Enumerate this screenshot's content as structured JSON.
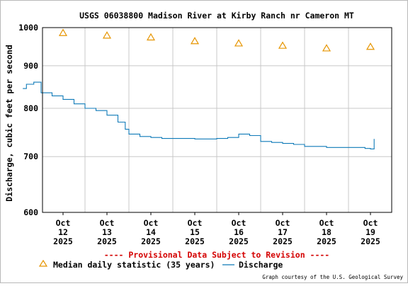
{
  "chart_data": {
    "type": "line",
    "title": "USGS 06038800 Madison River at Kirby Ranch nr Cameron MT",
    "ylabel": "Discharge, cubic feet per second",
    "xlabel": "",
    "y_scale": "log",
    "ylim": [
      600,
      1000
    ],
    "y_ticks": [
      600,
      700,
      800,
      900,
      1000
    ],
    "x_ticks": [
      {
        "month": "Oct",
        "day": "12",
        "year": "2025"
      },
      {
        "month": "Oct",
        "day": "13",
        "year": "2025"
      },
      {
        "month": "Oct",
        "day": "14",
        "year": "2025"
      },
      {
        "month": "Oct",
        "day": "15",
        "year": "2025"
      },
      {
        "month": "Oct",
        "day": "16",
        "year": "2025"
      },
      {
        "month": "Oct",
        "day": "17",
        "year": "2025"
      },
      {
        "month": "Oct",
        "day": "18",
        "year": "2025"
      },
      {
        "month": "Oct",
        "day": "19",
        "year": "2025"
      }
    ],
    "grid": true,
    "legend_position": "bottom",
    "series": [
      {
        "name": "Median daily statistic (35 years)",
        "type": "scatter",
        "marker": "triangle",
        "color": "#e69500",
        "x": [
          "2025-10-12",
          "2025-10-13",
          "2025-10-14",
          "2025-10-15",
          "2025-10-16",
          "2025-10-17",
          "2025-10-18",
          "2025-10-19"
        ],
        "values": [
          985,
          978,
          973,
          963,
          957,
          951,
          944,
          948
        ]
      },
      {
        "name": "Discharge",
        "type": "line",
        "color": "#0f7ab8",
        "x": [
          "2025-10-11 14:00",
          "2025-10-11 16:00",
          "2025-10-11 20:00",
          "2025-10-12 00:00",
          "2025-10-12 06:00",
          "2025-10-12 12:00",
          "2025-10-12 18:00",
          "2025-10-13 00:00",
          "2025-10-13 06:00",
          "2025-10-13 12:00",
          "2025-10-13 18:00",
          "2025-10-13 22:00",
          "2025-10-14 00:00",
          "2025-10-14 06:00",
          "2025-10-14 12:00",
          "2025-10-14 18:00",
          "2025-10-15 00:00",
          "2025-10-15 06:00",
          "2025-10-15 12:00",
          "2025-10-15 18:00",
          "2025-10-16 00:00",
          "2025-10-16 06:00",
          "2025-10-16 12:00",
          "2025-10-16 18:00",
          "2025-10-17 00:00",
          "2025-10-17 06:00",
          "2025-10-17 12:00",
          "2025-10-17 18:00",
          "2025-10-18 00:00",
          "2025-10-18 06:00",
          "2025-10-18 12:00",
          "2025-10-18 18:00",
          "2025-10-19 00:00",
          "2025-10-19 06:00",
          "2025-10-19 09:00",
          "2025-10-19 12:00",
          "2025-10-19 14:00"
        ],
        "values": [
          845,
          855,
          860,
          835,
          828,
          820,
          810,
          800,
          795,
          785,
          770,
          755,
          745,
          740,
          738,
          736,
          736,
          736,
          735,
          735,
          736,
          738,
          745,
          742,
          730,
          728,
          726,
          724,
          720,
          720,
          718,
          718,
          718,
          718,
          716,
          715,
          735
        ]
      }
    ],
    "annotations": [
      "---- Provisional Data Subject to Revision ----"
    ],
    "credit": "Graph courtesy of the U.S. Geological Survey"
  }
}
